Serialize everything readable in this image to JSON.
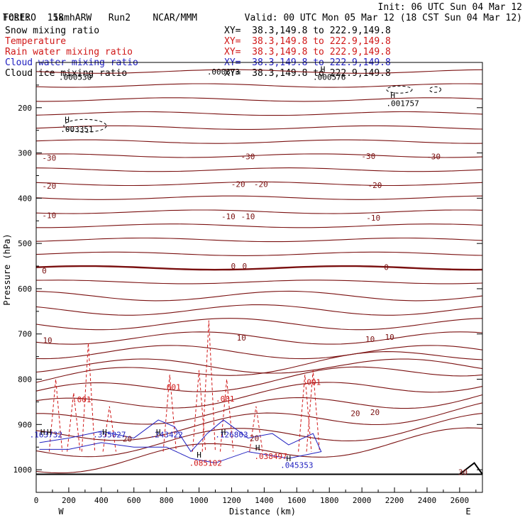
{
  "header": {
    "model": "TORERO",
    "resolution": "15km ARW",
    "run": "Run2",
    "org": "NCAR/MMM",
    "init": "Init: 06 UTC Sun 04 Mar 12",
    "fcst_label": "Fcst:",
    "fcst_value": "18 h",
    "valid": "Valid: 00 UTC Mon 05 Mar 12 (18 CST Sun 04 Mar 12)"
  },
  "fields": [
    {
      "name": "Snow mixing ratio",
      "xy": "XY=  38.3,149.8 to 222.9,149.8",
      "color": "#000000"
    },
    {
      "name": "Temperature",
      "xy": "XY=  38.3,149.8 to 222.9,149.8",
      "color": "#d01818"
    },
    {
      "name": "Rain water mixing ratio",
      "xy": "XY=  38.3,149.8 to 222.9,149.8",
      "color": "#d01818"
    },
    {
      "name": "Cloud water mixing ratio",
      "xy": "XY=  38.3,149.8 to 222.9,149.8",
      "color": "#2020c0"
    },
    {
      "name": "Cloud ice mixing ratio",
      "xy": "XY=  38.3,149.8 to 222.9,149.8",
      "color": "#000000"
    }
  ],
  "chart_data": {
    "type": "line",
    "title": "Cross section",
    "xlabel": "Distance (km)",
    "ylabel": "Pressure (hPa)",
    "xlim": [
      0,
      2740
    ],
    "ylim": [
      100,
      1050
    ],
    "xticks": [
      0,
      200,
      400,
      600,
      800,
      1000,
      1200,
      1400,
      1600,
      1800,
      2000,
      2200,
      2400,
      2600
    ],
    "yticks": [
      200,
      300,
      400,
      500,
      600,
      700,
      800,
      900,
      1000
    ],
    "x_endpoints": {
      "left": "W",
      "right": "E"
    },
    "temperature_labels": [
      {
        "value": "-30",
        "x": 80,
        "p": 311
      },
      {
        "value": "-30",
        "x": 1300,
        "p": 308
      },
      {
        "value": "-30",
        "x": 2040,
        "p": 307
      },
      {
        "value": "-30",
        "x": 2440,
        "p": 308
      },
      {
        "value": "-20",
        "x": 80,
        "p": 373
      },
      {
        "value": "-20",
        "x": 1240,
        "p": 369
      },
      {
        "value": "-20",
        "x": 1380,
        "p": 369
      },
      {
        "value": "-20",
        "x": 2080,
        "p": 371
      },
      {
        "value": "-10",
        "x": 80,
        "p": 438
      },
      {
        "value": "-10",
        "x": 1180,
        "p": 440
      },
      {
        "value": "-10",
        "x": 1300,
        "p": 440
      },
      {
        "value": "-10",
        "x": 2070,
        "p": 443
      },
      {
        "value": "0",
        "x": 50,
        "p": 560
      },
      {
        "value": "0",
        "x": 1210,
        "p": 550
      },
      {
        "value": "0",
        "x": 1280,
        "p": 550
      },
      {
        "value": "0",
        "x": 2150,
        "p": 552
      },
      {
        "value": "10",
        "x": 70,
        "p": 714
      },
      {
        "value": "10",
        "x": 1260,
        "p": 708
      },
      {
        "value": "10",
        "x": 2050,
        "p": 711
      },
      {
        "value": "10",
        "x": 2170,
        "p": 707
      },
      {
        "value": "20",
        "x": 560,
        "p": 932
      },
      {
        "value": "20",
        "x": 1340,
        "p": 930
      },
      {
        "value": "20",
        "x": 1960,
        "p": 875
      },
      {
        "value": "20",
        "x": 2080,
        "p": 873
      },
      {
        "value": "30",
        "x": 2620,
        "p": 1005
      }
    ],
    "rain_labels": [
      {
        "value": ".001",
        "x": 280,
        "p": 845
      },
      {
        "value": ".001",
        "x": 830,
        "p": 817
      },
      {
        "value": ".001",
        "x": 1160,
        "p": 843
      },
      {
        "value": ".001",
        "x": 1690,
        "p": 806
      }
    ],
    "cloud_water_maxima": [
      {
        "value": ".163732",
        "x": 60,
        "p": 922
      },
      {
        "value": ".355027",
        "x": 450,
        "p": 922
      },
      {
        "value": ".243422",
        "x": 800,
        "p": 922
      },
      {
        "value": ".126803",
        "x": 1200,
        "p": 922
      },
      {
        "value": ".045353",
        "x": 1600,
        "p": 990
      }
    ],
    "rain_maxima": [
      {
        "value": ".085102",
        "x": 1040,
        "p": 985
      },
      {
        "value": ".038497",
        "x": 1440,
        "p": 970
      }
    ],
    "snow_ice_maxima": [
      {
        "value": ".003351",
        "x": 250,
        "p": 247
      },
      {
        "value": ".001757",
        "x": 2250,
        "p": 190
      },
      {
        "value": ".000530",
        "x": 240,
        "p": 132
      },
      {
        "value": ".000576",
        "x": 1800,
        "p": 132
      },
      {
        "value": ".000373",
        "x": 1150,
        "p": 120
      }
    ],
    "h_markers": [
      {
        "x": 190,
        "p": 226
      },
      {
        "x": 2190,
        "p": 172
      },
      {
        "x": 420,
        "p": 917
      },
      {
        "x": 750,
        "p": 917
      },
      {
        "x": 1150,
        "p": 917
      },
      {
        "x": 1550,
        "p": 975
      },
      {
        "x": 1000,
        "p": 967
      },
      {
        "x": 1360,
        "p": 951
      },
      {
        "x": 40,
        "p": 917
      },
      {
        "x": 80,
        "p": 917
      },
      {
        "x": 1760,
        "p": 115
      }
    ]
  }
}
